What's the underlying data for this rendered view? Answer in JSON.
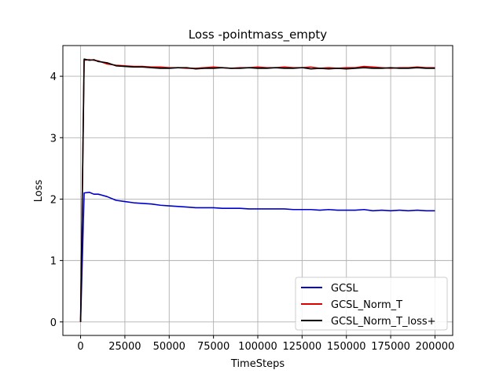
{
  "chart_data": {
    "type": "line",
    "title": "Loss -pointmass_empty",
    "xlabel": "TimeSteps",
    "ylabel": "Loss",
    "xlim": [
      -10000,
      210000
    ],
    "ylim": [
      -0.22,
      4.5
    ],
    "xticks": [
      0,
      25000,
      50000,
      75000,
      100000,
      125000,
      150000,
      175000,
      200000
    ],
    "xtick_labels": [
      "0",
      "25000",
      "50000",
      "75000",
      "100000",
      "125000",
      "150000",
      "175000",
      "200000"
    ],
    "yticks": [
      0,
      1,
      2,
      3,
      4
    ],
    "ytick_labels": [
      "0",
      "1",
      "2",
      "3",
      "4"
    ],
    "grid": true,
    "legend_position": "lower-right",
    "series": [
      {
        "name": "GCSL",
        "color": "#0000cc",
        "x": [
          0,
          2000,
          5000,
          7500,
          10000,
          15000,
          20000,
          25000,
          30000,
          35000,
          40000,
          45000,
          50000,
          55000,
          60000,
          65000,
          70000,
          75000,
          80000,
          85000,
          90000,
          95000,
          100000,
          105000,
          110000,
          115000,
          120000,
          125000,
          130000,
          135000,
          140000,
          145000,
          150000,
          155000,
          160000,
          165000,
          170000,
          175000,
          180000,
          185000,
          190000,
          195000,
          200000
        ],
        "y": [
          0.0,
          2.1,
          2.11,
          2.08,
          2.08,
          2.04,
          1.98,
          1.96,
          1.94,
          1.93,
          1.92,
          1.9,
          1.89,
          1.88,
          1.87,
          1.86,
          1.86,
          1.86,
          1.85,
          1.85,
          1.85,
          1.84,
          1.84,
          1.84,
          1.84,
          1.84,
          1.83,
          1.83,
          1.83,
          1.82,
          1.83,
          1.82,
          1.82,
          1.82,
          1.83,
          1.81,
          1.82,
          1.81,
          1.82,
          1.81,
          1.82,
          1.81,
          1.81
        ]
      },
      {
        "name": "GCSL_Norm_T",
        "color": "#dd0000",
        "x": [
          0,
          2000,
          5000,
          7500,
          10000,
          15000,
          20000,
          25000,
          30000,
          35000,
          40000,
          45000,
          50000,
          55000,
          60000,
          65000,
          70000,
          75000,
          80000,
          85000,
          90000,
          95000,
          100000,
          105000,
          110000,
          115000,
          120000,
          125000,
          130000,
          135000,
          140000,
          145000,
          150000,
          155000,
          160000,
          165000,
          170000,
          175000,
          180000,
          185000,
          190000,
          195000,
          200000
        ],
        "y": [
          0.0,
          4.26,
          4.27,
          4.26,
          4.25,
          4.2,
          4.18,
          4.17,
          4.16,
          4.16,
          4.15,
          4.15,
          4.14,
          4.14,
          4.13,
          4.13,
          4.14,
          4.15,
          4.14,
          4.13,
          4.14,
          4.14,
          4.15,
          4.14,
          4.14,
          4.15,
          4.14,
          4.14,
          4.15,
          4.13,
          4.14,
          4.13,
          4.14,
          4.14,
          4.16,
          4.15,
          4.14,
          4.13,
          4.14,
          4.14,
          4.15,
          4.14,
          4.14
        ]
      },
      {
        "name": "GCSL_Norm_T_loss+",
        "color": "#000000",
        "x": [
          0,
          2000,
          5000,
          7500,
          10000,
          15000,
          20000,
          25000,
          30000,
          35000,
          40000,
          45000,
          50000,
          55000,
          60000,
          65000,
          70000,
          75000,
          80000,
          85000,
          90000,
          95000,
          100000,
          105000,
          110000,
          115000,
          120000,
          125000,
          130000,
          135000,
          140000,
          145000,
          150000,
          155000,
          160000,
          165000,
          170000,
          175000,
          180000,
          185000,
          190000,
          195000,
          200000
        ],
        "y": [
          0.0,
          4.28,
          4.26,
          4.27,
          4.24,
          4.22,
          4.17,
          4.16,
          4.15,
          4.15,
          4.14,
          4.13,
          4.13,
          4.14,
          4.14,
          4.12,
          4.13,
          4.13,
          4.14,
          4.13,
          4.13,
          4.14,
          4.13,
          4.13,
          4.14,
          4.13,
          4.13,
          4.14,
          4.12,
          4.13,
          4.12,
          4.13,
          4.12,
          4.13,
          4.14,
          4.13,
          4.13,
          4.14,
          4.13,
          4.13,
          4.14,
          4.13,
          4.13
        ]
      }
    ]
  }
}
